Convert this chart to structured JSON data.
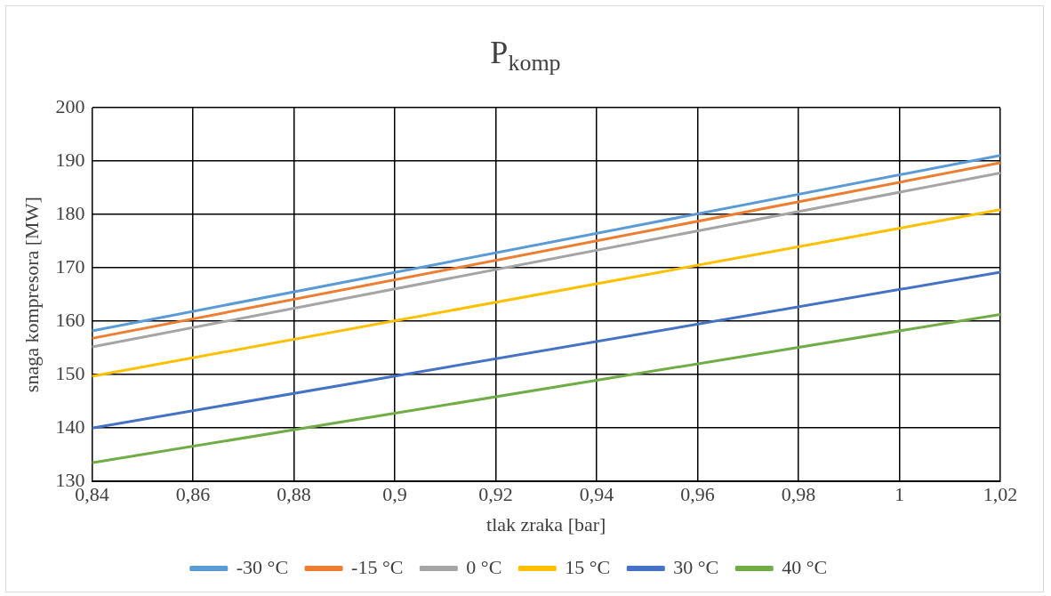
{
  "chart_data": {
    "type": "line",
    "title": "P$_{komp}$",
    "xlabel": "tlak zraka [bar]",
    "ylabel": "snaga kompresora [MW]",
    "x": [
      0.84,
      1.02
    ],
    "series": [
      {
        "name": "-30 °C",
        "color": "#5b9bd5",
        "values": [
          158.2,
          191.1
        ]
      },
      {
        "name": "-15 °C",
        "color": "#ed7d31",
        "values": [
          156.8,
          189.7
        ]
      },
      {
        "name": "0 °C",
        "color": "#a5a5a5",
        "values": [
          155.2,
          187.8
        ]
      },
      {
        "name": "15 °C",
        "color": "#ffc000",
        "values": [
          149.7,
          180.9
        ]
      },
      {
        "name": "30 °C",
        "color": "#4472c4",
        "values": [
          140,
          169.2
        ]
      },
      {
        "name": "40 °C",
        "color": "#70ad47",
        "values": [
          133.5,
          161.3
        ]
      }
    ],
    "xlim": [
      0.84,
      1.02
    ],
    "xticks": [
      {
        "value": 0.84,
        "label": "0,84"
      },
      {
        "value": 0.86,
        "label": "0,86"
      },
      {
        "value": 0.88,
        "label": "0,88"
      },
      {
        "value": 0.9,
        "label": "0,9"
      },
      {
        "value": 0.92,
        "label": "0,92"
      },
      {
        "value": 0.94,
        "label": "0,94"
      },
      {
        "value": 0.96,
        "label": "0,96"
      },
      {
        "value": 0.98,
        "label": "0,98"
      },
      {
        "value": 1,
        "label": "1"
      },
      {
        "value": 1.02,
        "label": "1,02"
      }
    ],
    "ylim": [
      130,
      200
    ],
    "yticks": [
      130,
      140,
      150,
      160,
      170,
      180,
      190,
      200
    ],
    "grid": true,
    "legend": "bottom",
    "marker": "none",
    "line_style": "solid"
  }
}
